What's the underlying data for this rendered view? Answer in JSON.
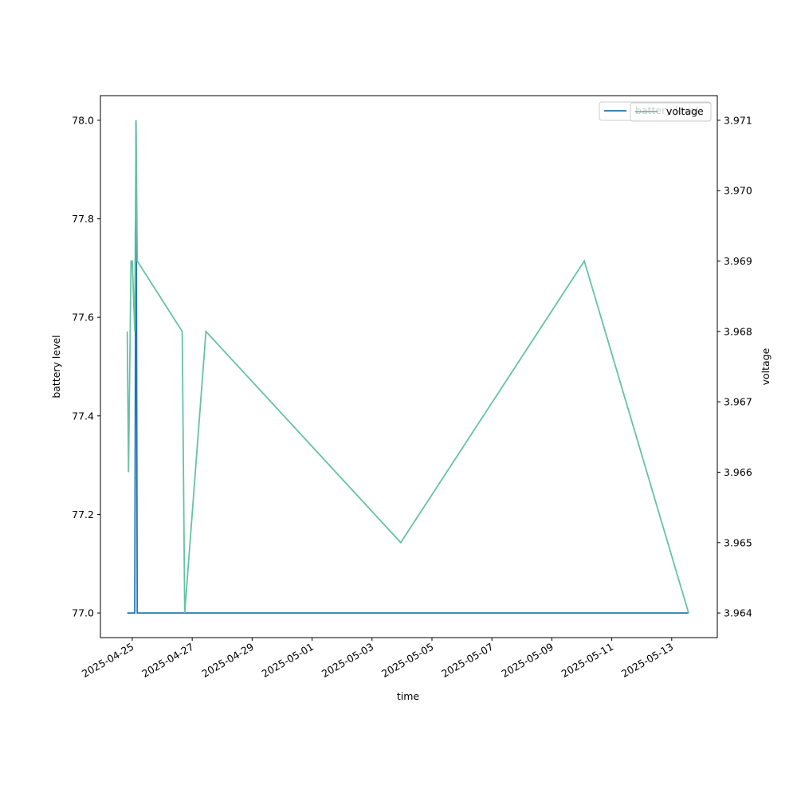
{
  "chart_data": {
    "type": "line",
    "xlabel": "time",
    "ylabel": "battery level",
    "y2label": "voltage",
    "x": [
      "2025-04-24T20:00",
      "2025-04-24T21:00",
      "2025-04-24T23:00",
      "2025-04-25T00:00",
      "2025-04-25T02:00",
      "2025-04-25T03:00",
      "2025-04-25T04:00",
      "2025-04-26T16:00",
      "2025-04-26T18:00",
      "2025-04-27T11:00",
      "2025-05-03T23:00",
      "2025-05-10T02:00",
      "2025-05-13T13:30"
    ],
    "series": [
      {
        "name": "battery level",
        "color": "#1f77b4",
        "values": [
          77,
          77,
          77,
          77,
          77,
          78,
          77,
          77,
          77,
          77,
          77,
          77,
          77
        ]
      },
      {
        "name": "voltage",
        "color": "#66c2a5",
        "axis": "y2",
        "values": [
          3.968,
          3.966,
          3.969,
          3.969,
          3.968,
          3.971,
          3.969,
          3.968,
          3.964,
          3.968,
          3.965,
          3.969,
          3.964
        ]
      }
    ],
    "xlim": [
      "2025-04-23T22:30",
      "2025-05-14T12:30"
    ],
    "xticks": [
      "2025-04-25",
      "2025-04-27",
      "2025-04-29",
      "2025-05-01",
      "2025-05-03",
      "2025-05-05",
      "2025-05-07",
      "2025-05-09",
      "2025-05-11",
      "2025-05-13"
    ],
    "ylim": [
      76.95,
      78.05
    ],
    "yticks": [
      {
        "value": 77,
        "label": "77.0"
      },
      77.2,
      77.4,
      77.6,
      77.8,
      {
        "value": 78,
        "label": "78.0"
      }
    ],
    "y2lim": [
      3.96365,
      3.97135
    ],
    "y2ticks": [
      3.964,
      3.965,
      3.966,
      3.967,
      3.968,
      3.969,
      {
        "value": 3.97,
        "label": "3.970"
      },
      3.971
    ],
    "legend": "upper right"
  }
}
